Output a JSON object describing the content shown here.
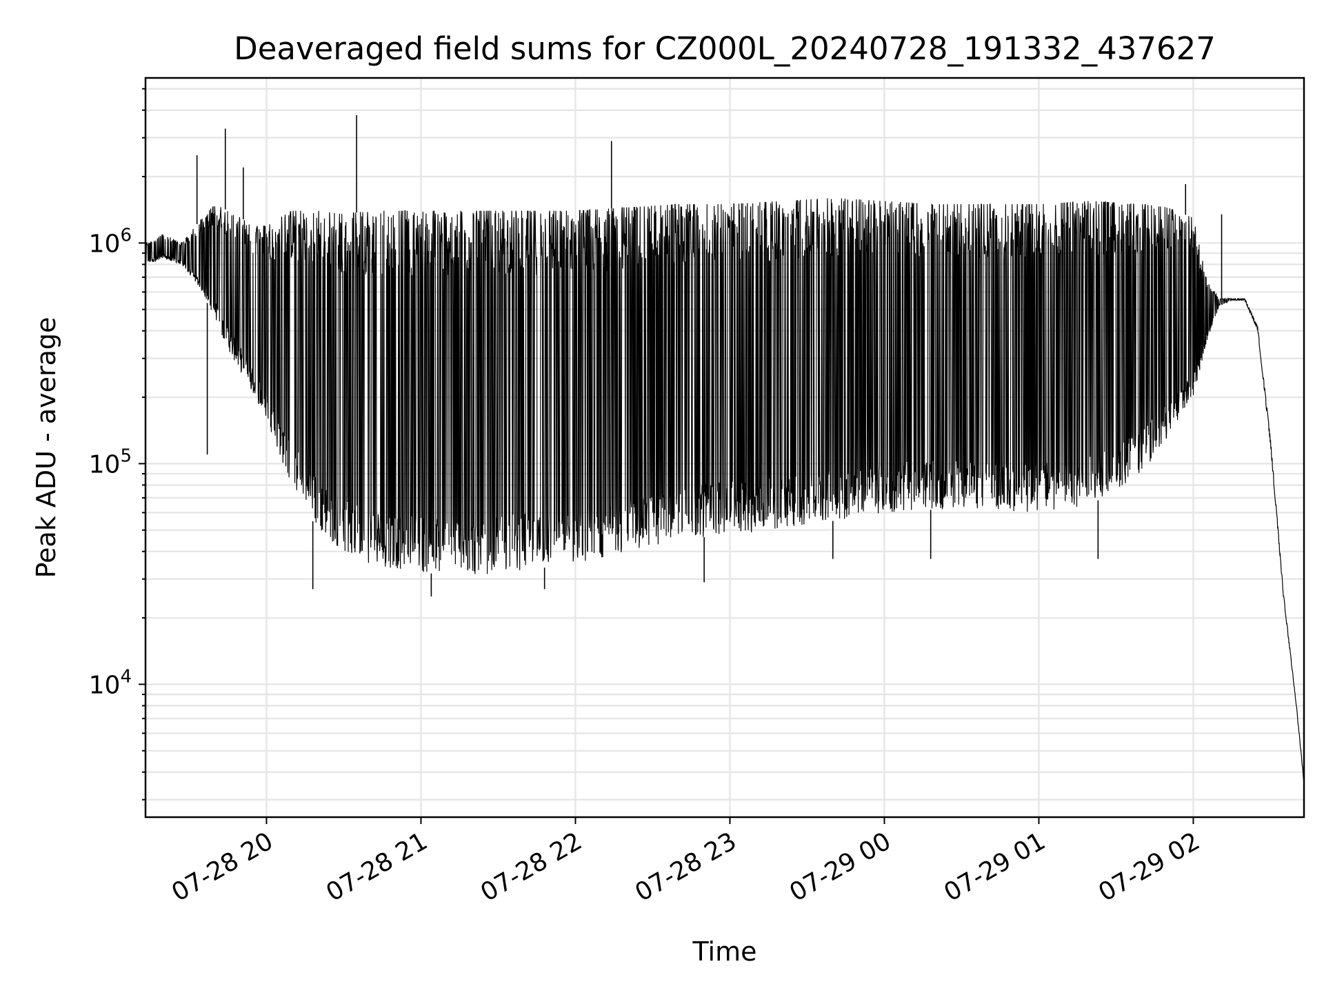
{
  "chart_data": {
    "type": "line",
    "title": "Deaveraged field sums for CZ000L_20240728_191332_437627",
    "xlabel": "Time",
    "ylabel": "Peak ADU - average",
    "yscale": "log",
    "ylim": [
      2500,
      5600000
    ],
    "xlim": [
      "07-28 19:13",
      "07-29 02:43"
    ],
    "grid": true,
    "x_ticks": [
      "07-28 20",
      "07-28 21",
      "07-28 22",
      "07-28 23",
      "07-29 00",
      "07-29 01",
      "07-29 02"
    ],
    "y_ticks": [
      {
        "value": 10000,
        "base": "10",
        "exp": "4"
      },
      {
        "value": 100000,
        "base": "10",
        "exp": "5"
      },
      {
        "value": 1000000,
        "base": "10",
        "exp": "6"
      }
    ],
    "series": [
      {
        "color": "#000000",
        "envelope": {
          "x": [
            "07-28 19:13",
            "07-28 19:20",
            "07-28 19:27",
            "07-28 19:35",
            "07-28 19:40",
            "07-28 19:45",
            "07-28 19:50",
            "07-28 19:55",
            "07-28 20:00",
            "07-28 20:05",
            "07-28 20:10",
            "07-28 20:15",
            "07-28 20:20",
            "07-28 20:30",
            "07-28 20:40",
            "07-28 21:00",
            "07-28 21:20",
            "07-28 21:40",
            "07-28 22:00",
            "07-28 22:20",
            "07-28 22:40",
            "07-28 23:00",
            "07-28 23:20",
            "07-28 23:40",
            "07-29 00:00",
            "07-29 00:20",
            "07-29 00:40",
            "07-29 01:00",
            "07-29 01:20",
            "07-29 01:40",
            "07-29 01:50",
            "07-29 02:00",
            "07-29 02:05",
            "07-29 02:10",
            "07-29 02:15",
            "07-29 02:20",
            "07-29 02:25",
            "07-29 02:30",
            "07-29 02:35",
            "07-29 02:40",
            "07-29 02:43"
          ],
          "base": [
            800000,
            850000,
            800000,
            600000,
            450000,
            330000,
            260000,
            200000,
            160000,
            110000,
            78000,
            63000,
            50000,
            40000,
            35000,
            32000,
            31000,
            33000,
            35000,
            40000,
            45000,
            48000,
            50000,
            55000,
            60000,
            62000,
            62000,
            60000,
            65000,
            90000,
            130000,
            200000,
            350000,
            520000,
            550000,
            550000,
            400000,
            120000,
            25000,
            8000,
            3500
          ],
          "peak": [
            1000000,
            1100000,
            1000000,
            1300000,
            1500000,
            1400000,
            1300000,
            1200000,
            1200000,
            1300000,
            1400000,
            1400000,
            1400000,
            1350000,
            1400000,
            1400000,
            1400000,
            1400000,
            1400000,
            1450000,
            1500000,
            1500000,
            1550000,
            1600000,
            1550000,
            1500000,
            1500000,
            1500000,
            1550000,
            1500000,
            1450000,
            1300000,
            700000,
            560000,
            560000,
            560000,
            420000,
            130000,
            26000,
            8200,
            3600
          ]
        },
        "spikes": [
          {
            "x": "07-28 19:33",
            "y": 2500000
          },
          {
            "x": "07-28 19:37",
            "y": 110000
          },
          {
            "x": "07-28 19:44",
            "y": 3300000
          },
          {
            "x": "07-28 19:51",
            "y": 2200000
          },
          {
            "x": "07-28 20:18",
            "y": 27000
          },
          {
            "x": "07-28 20:35",
            "y": 3800000
          },
          {
            "x": "07-28 21:04",
            "y": 25000
          },
          {
            "x": "07-28 21:48",
            "y": 27000
          },
          {
            "x": "07-28 22:14",
            "y": 2900000
          },
          {
            "x": "07-28 22:50",
            "y": 29000
          },
          {
            "x": "07-28 23:40",
            "y": 37000
          },
          {
            "x": "07-29 00:18",
            "y": 37000
          },
          {
            "x": "07-29 01:23",
            "y": 37000
          },
          {
            "x": "07-29 01:57",
            "y": 1850000
          },
          {
            "x": "07-29 02:11",
            "y": 1350000
          }
        ]
      }
    ]
  }
}
